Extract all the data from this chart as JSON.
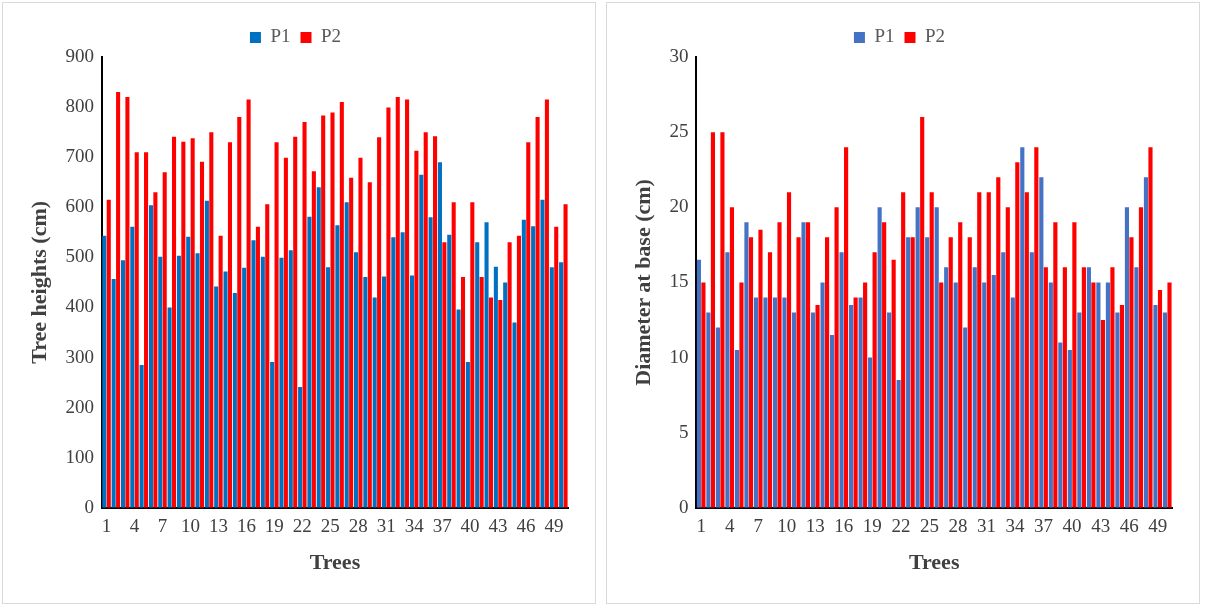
{
  "chart_data": [
    {
      "type": "bar",
      "xlabel": "Trees",
      "ylabel": "Tree heights (cm)",
      "legend": "top",
      "categories": [
        "1",
        null,
        null,
        "4",
        null,
        null,
        "7",
        null,
        null,
        "10",
        null,
        null,
        "13",
        null,
        null,
        "16",
        null,
        null,
        "19",
        null,
        null,
        "22",
        null,
        null,
        "25",
        null,
        null,
        "28",
        null,
        null,
        "31",
        null,
        null,
        "34",
        null,
        null,
        "37",
        null,
        null,
        "40",
        null,
        null,
        "43",
        null,
        null,
        "46",
        null,
        null,
        "49",
        null
      ],
      "ylim": [
        0,
        900
      ],
      "yticks": [
        0,
        100,
        200,
        300,
        400,
        500,
        600,
        700,
        800,
        900
      ],
      "grid": false,
      "series": [
        {
          "name": "P1",
          "color": "#0070c0",
          "values": [
            543,
            457,
            494,
            561,
            285,
            604,
            501,
            400,
            503,
            541,
            508,
            613,
            442,
            472,
            429,
            479,
            534,
            501,
            291,
            499,
            514,
            241,
            581,
            640,
            480,
            564,
            610,
            510,
            461,
            420,
            462,
            540,
            550,
            464,
            665,
            580,
            690,
            545,
            396,
            291,
            530,
            570,
            481,
            450,
            370,
            575,
            562,
            615,
            480,
            490
          ]
        },
        {
          "name": "P2",
          "color": "#ff0000",
          "values": [
            615,
            830,
            820,
            710,
            710,
            630,
            670,
            741,
            731,
            738,
            691,
            750,
            543,
            730,
            780,
            815,
            561,
            606,
            730,
            699,
            741,
            770,
            672,
            783,
            789,
            810,
            659,
            699,
            650,
            740,
            799,
            820,
            815,
            713,
            750,
            742,
            530,
            610,
            461,
            610,
            461,
            420,
            415,
            530,
            543,
            730,
            780,
            815,
            561,
            606
          ]
        }
      ]
    },
    {
      "type": "bar",
      "xlabel": "Trees",
      "ylabel": "Diameter at base (cm)",
      "legend": "top",
      "categories": [
        "1",
        null,
        null,
        "4",
        null,
        null,
        "7",
        null,
        null,
        "10",
        null,
        null,
        "13",
        null,
        null,
        "16",
        null,
        null,
        "19",
        null,
        null,
        "22",
        null,
        null,
        "25",
        null,
        null,
        "28",
        null,
        null,
        "31",
        null,
        null,
        "34",
        null,
        null,
        "37",
        null,
        null,
        "40",
        null,
        null,
        "43",
        null,
        null,
        "46",
        null,
        null,
        "49",
        null
      ],
      "ylim": [
        0,
        30
      ],
      "yticks": [
        0,
        5,
        10,
        15,
        20,
        25,
        30
      ],
      "grid": false,
      "series": [
        {
          "name": "P1",
          "color": "#4472c4",
          "values": [
            16.5,
            13,
            12,
            17,
            10.5,
            19,
            14,
            14,
            14,
            14,
            13,
            19,
            13,
            15,
            11.5,
            17,
            13.5,
            14,
            10,
            20,
            13,
            8.5,
            18,
            20,
            18,
            20,
            16,
            15,
            12,
            16,
            15,
            15.5,
            17,
            14,
            24,
            17,
            22,
            15,
            11,
            10.5,
            13,
            16,
            15,
            15,
            13,
            20,
            16,
            22,
            13.5,
            13
          ]
        },
        {
          "name": "P2",
          "color": "#ff0000",
          "values": [
            15,
            25,
            25,
            20,
            15,
            18,
            18.5,
            17,
            19,
            21,
            18,
            19,
            13.5,
            18,
            20,
            24,
            14,
            15,
            17,
            19,
            16.5,
            21,
            18,
            26,
            21,
            15,
            18,
            19,
            18,
            21,
            21,
            22,
            20,
            23,
            21,
            24,
            16,
            19,
            16,
            19,
            16,
            15,
            12.5,
            16,
            13.5,
            18,
            20,
            24,
            14.5,
            15
          ]
        }
      ]
    }
  ]
}
